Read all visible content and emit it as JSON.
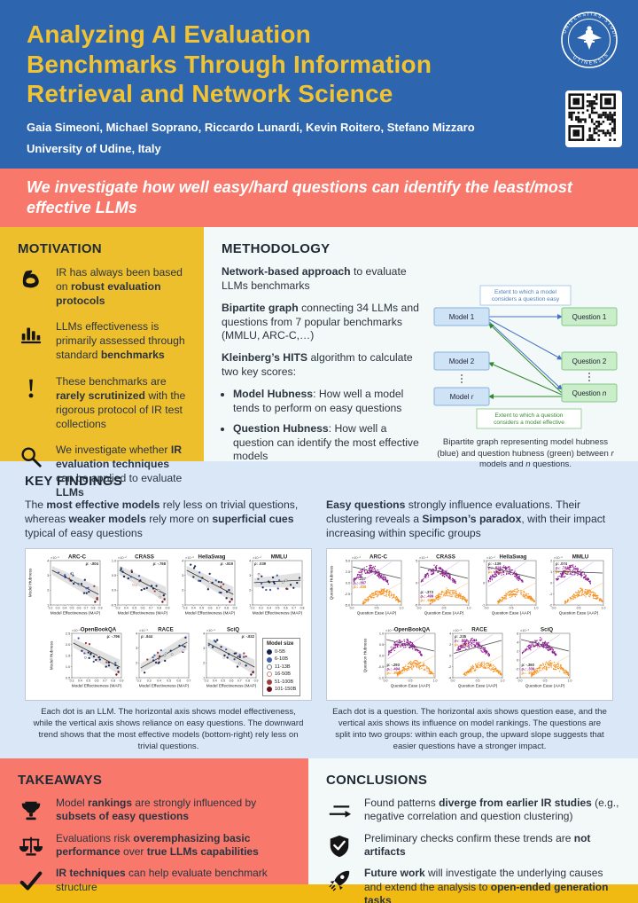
{
  "header": {
    "title_lines": [
      "Analyzing AI Evaluation",
      "Benchmarks Through Information",
      "Retrieval and Network Science"
    ],
    "authors": "Gaia Simeoni, Michael Soprano, Riccardo Lunardi, Kevin Roitero, Stefano Mizzaro",
    "affiliation": "University of Udine, Italy",
    "seal_text_top": "UNIVERSITAS STUDIORUM",
    "seal_text_bottom": "UTINENSIS"
  },
  "banner": {
    "text": "We investigate how well easy/hard questions can identify the least/most effective LLMs"
  },
  "motivation": {
    "heading": "MOTIVATION",
    "items": [
      {
        "icon": "muscle-icon",
        "segments": [
          {
            "t": "IR has always been based on "
          },
          {
            "t": "robust evaluation protocols",
            "b": true
          }
        ]
      },
      {
        "icon": "bar-chart-icon",
        "segments": [
          {
            "t": "LLMs effectiveness is primarily assessed through standard "
          },
          {
            "t": "benchmarks",
            "b": true
          }
        ]
      },
      {
        "icon": "exclamation-icon",
        "segments": [
          {
            "t": "These benchmarks are "
          },
          {
            "t": "rarely scrutinized",
            "b": true
          },
          {
            "t": " with the rigorous protocol of IR test collections"
          }
        ]
      },
      {
        "icon": "magnifier-icon",
        "segments": [
          {
            "t": "We investigate whether "
          },
          {
            "t": "IR evaluation techniques",
            "b": true
          },
          {
            "t": " can be applied to evaluate "
          },
          {
            "t": "LLMs",
            "b": true
          }
        ]
      }
    ]
  },
  "methodology": {
    "heading": "METHODOLOGY",
    "paragraphs": [
      [
        {
          "t": "Network-based approach",
          "b": true
        },
        {
          "t": " to evaluate LLMs benchmarks"
        }
      ],
      [
        {
          "t": "Bipartite graph",
          "b": true
        },
        {
          "t": " connecting 34 LLMs and questions from 7 popular benchmarks (MMLU, ARC-C,…)"
        }
      ],
      [
        {
          "t": "Kleinberg’s HITS",
          "b": true
        },
        {
          "t": " algorithm to calculate two key scores:"
        }
      ]
    ],
    "bullets": [
      [
        {
          "t": "Model Hubness",
          "b": true
        },
        {
          "t": ": How well a model tends to perform on easy questions"
        }
      ],
      [
        {
          "t": "Question Hubness",
          "b": true
        },
        {
          "t": ": How well a question can identify the most effective models"
        }
      ]
    ],
    "diagram": {
      "top_label": "Extent to which a model\nconsiders a question easy",
      "bottom_label": "Extent to which a question\nconsiders a model effective",
      "models": [
        [
          {
            "t": "Model 1"
          }
        ],
        [
          {
            "t": "Model 2"
          }
        ],
        [
          {
            "t": "Model "
          },
          {
            "t": "r",
            "i": true
          }
        ]
      ],
      "questions": [
        [
          {
            "t": "Question 1"
          }
        ],
        [
          {
            "t": "Question 2"
          }
        ],
        [
          {
            "t": "Question "
          },
          {
            "t": "n",
            "i": true
          }
        ]
      ],
      "model_fill": "#cfe3f7",
      "model_border": "#8ab0dd",
      "question_fill": "#c9eec9",
      "question_border": "#86c786",
      "blue_arrow": "#4472c4",
      "green_arrow": "#2e8b2e",
      "caption_segments": [
        {
          "t": "Bipartite graph representing model hubness (blue) and question hubness (green) between "
        },
        {
          "t": "r",
          "i": true
        },
        {
          "t": " models and "
        },
        {
          "t": "n",
          "i": true
        },
        {
          "t": " questions."
        }
      ]
    }
  },
  "key_findings": {
    "heading": "KEY FINDINGS",
    "left_intro": [
      {
        "t": "The "
      },
      {
        "t": "most effective models",
        "b": true
      },
      {
        "t": " rely less on trivial questions, whereas "
      },
      {
        "t": "weaker models",
        "b": true
      },
      {
        "t": " rely more on "
      },
      {
        "t": "superficial cues",
        "b": true
      },
      {
        "t": " typical of easy questions"
      }
    ],
    "right_intro": [
      {
        "t": "Easy questions",
        "b": true
      },
      {
        "t": " strongly influence evaluations. Their clustering reveals a "
      },
      {
        "t": "Simpson’s paradox",
        "b": true
      },
      {
        "t": ", with their impact increasing within specific groups"
      }
    ],
    "left_caption": "Each dot is an LLM. The horizontal axis shows model effectiveness, while the vertical axis shows reliance on easy questions. The downward trend shows that the most effective models (bottom-right) rely less on trivial questions.",
    "right_caption": "Each dot is a question. The horizontal axis shows question ease, and the vertical axis shows its influence on model rankings. The questions are split into two groups: within each group, the upward slope suggests that easier questions have a stronger impact."
  },
  "takeaways": {
    "heading": "TAKEAWAYS",
    "items": [
      {
        "icon": "trophy-icon",
        "segments": [
          {
            "t": "Model "
          },
          {
            "t": "rankings",
            "b": true
          },
          {
            "t": " are strongly influenced by "
          },
          {
            "t": "subsets of easy questions",
            "b": true
          }
        ]
      },
      {
        "icon": "scale-icon",
        "segments": [
          {
            "t": "Evaluations risk "
          },
          {
            "t": "overemphasizing basic performance",
            "b": true
          },
          {
            "t": " over "
          },
          {
            "t": "true LLMs capabilities",
            "b": true
          }
        ]
      },
      {
        "icon": "check-icon",
        "segments": [
          {
            "t": "IR techniques",
            "b": true
          },
          {
            "t": " can help evaluate benchmark structure"
          }
        ]
      }
    ]
  },
  "conclusions": {
    "heading": "CONCLUSIONS",
    "items": [
      {
        "icon": "swap-arrows-icon",
        "segments": [
          {
            "t": "Found patterns "
          },
          {
            "t": "diverge from earlier IR studies",
            "b": true
          },
          {
            "t": " (e.g., negative correlation and question clustering)"
          }
        ]
      },
      {
        "icon": "shield-check-icon",
        "segments": [
          {
            "t": "Preliminary checks confirm these trends are "
          },
          {
            "t": "not artifacts",
            "b": true
          }
        ]
      },
      {
        "icon": "rocket-icon",
        "segments": [
          {
            "t": "Future work",
            "b": true
          },
          {
            "t": " will investigate the underlying causes and extend the analysis to "
          },
          {
            "t": "open-ended generation tasks",
            "b": true
          }
        ]
      }
    ]
  },
  "colors": {
    "header_blue": "#2d65ae",
    "title_yellow": "#f1c232",
    "coral": "#f8796c",
    "motivation_yellow": "#eebf2c",
    "findings_blue": "#d9e7f6",
    "offwhite_panel": "#f3f8f8",
    "bottom_strip_yellow": "#f0ba12",
    "purple_cluster": "#8d1d8f",
    "orange_cluster": "#f5901e"
  },
  "chart_data": [
    {
      "type": "scatter",
      "kind": "model",
      "figure": "model-hubness-vs-model-effectiveness",
      "xlabel": "Model Effectiveness (MAP)",
      "ylabel": "Model Hubness",
      "subplots": [
        {
          "title": "ARC-C",
          "mult": "×10⁻²",
          "trend": "down",
          "rho_pos": "tr",
          "rho_lines": [
            {
              "text": "ρ: -.804",
              "color": "#333333"
            }
          ],
          "xticks": [
            "0.2",
            "0.3",
            "0.4",
            "0.5",
            "0.6",
            "0.7",
            "0.8",
            "0.9"
          ],
          "yticks": [
            "4",
            "3",
            "2",
            "1"
          ]
        },
        {
          "title": "CRASS",
          "mult": "×10⁻²",
          "trend": "down",
          "rho_pos": "tr",
          "rho_lines": [
            {
              "text": "ρ: -.768",
              "color": "#333333"
            }
          ],
          "xticks": [
            "0.3",
            "0.4",
            "0.5",
            "0.6",
            "0.7",
            "0.8",
            "0.9"
          ],
          "yticks": [
            "1.0",
            "0.5",
            "0.0",
            "-0.5"
          ]
        },
        {
          "title": "HellaSwag",
          "mult": "×10⁻²",
          "trend": "down",
          "rho_pos": "tr",
          "rho_lines": [
            {
              "text": "ρ: -.819",
              "color": "#333333"
            }
          ],
          "xticks": [
            "0.3",
            "0.4",
            "0.5",
            "0.6",
            "0.7",
            "0.8",
            "0.9"
          ],
          "yticks": [
            "4",
            "3",
            "2",
            "1"
          ]
        },
        {
          "title": "MMLU",
          "mult": "×10⁻²",
          "trend": "flat",
          "rho_pos": "tl",
          "rho_lines": [
            {
              "text": "ρ: .039",
              "color": "#333333"
            }
          ],
          "xticks": [
            "0.2",
            "0.3",
            "0.4",
            "0.5",
            "0.6",
            "0.7",
            "0.8"
          ],
          "yticks": [
            "4",
            "3",
            "2",
            "1"
          ]
        },
        {
          "title": "OpenBookQA",
          "mult": "×10⁻²",
          "trend": "down",
          "rho_pos": "tr",
          "rho_lines": [
            {
              "text": "ρ: -.796",
              "color": "#333333"
            }
          ],
          "xticks": [
            "0.3",
            "0.4",
            "0.5",
            "0.6",
            "0.7",
            "0.8",
            "0.9"
          ],
          "yticks": [
            "2.5",
            "2.0",
            "1.5",
            "1.0",
            "0.5"
          ]
        },
        {
          "title": "RACE",
          "mult": "×10⁻³",
          "trend": "up",
          "rho_pos": "tl",
          "rho_lines": [
            {
              "text": "ρ: .844",
              "color": "#333333"
            }
          ],
          "xticks": [
            "0.2",
            "0.3",
            "0.4",
            "0.5",
            "0.6",
            "0.7"
          ],
          "yticks": [
            "4",
            "3",
            "2",
            "1"
          ]
        },
        {
          "title": "SciQ",
          "mult": "×10⁻²",
          "trend": "down",
          "rho_pos": "tr",
          "rho_lines": [
            {
              "text": "ρ: -.832",
              "color": "#333333"
            }
          ],
          "xticks": [
            "0.3",
            "0.4",
            "0.5",
            "0.6",
            "0.7",
            "0.8",
            "0.9"
          ],
          "yticks": [
            "4",
            "3",
            "2",
            "1"
          ]
        }
      ],
      "legend": {
        "title": "Model size",
        "entries": [
          {
            "label": "0-5B",
            "color": "#10224c",
            "filled": true
          },
          {
            "label": "6-10B",
            "color": "#3f5fae",
            "filled": true
          },
          {
            "label": "11-13B",
            "color": "#777777",
            "filled": false
          },
          {
            "label": "16-50B",
            "color": "#c98a8a",
            "filled": false
          },
          {
            "label": "51-100B",
            "color": "#a33b3b",
            "filled": true
          },
          {
            "label": "101-150B",
            "color": "#6b1016",
            "filled": true
          }
        ]
      }
    },
    {
      "type": "scatter",
      "kind": "question",
      "figure": "question-hubness-vs-question-ease",
      "xlabel": "Question Ease (AAP)",
      "ylabel": "Question Hubness",
      "subplots": [
        {
          "title": "ARC-C",
          "mult": "×10⁻³",
          "trend": "down",
          "rho_pos": "ml",
          "rho_lines": [
            {
              "text": "ρ: -.237",
              "color": "#333333"
            },
            {
              "text": "ρ₁: .367",
              "color": "#8d1d8f"
            },
            {
              "text": "ρ₂: .838",
              "color": "#f5901e"
            }
          ],
          "xticks": [
            "0.0",
            "0.5",
            "1.0"
          ],
          "yticks": [
            "5.0",
            "2.5",
            "0.0",
            "-2.5",
            "-5.0"
          ]
        },
        {
          "title": "CRASS",
          "mult": "×10⁻⁴",
          "trend": "down",
          "rho_pos": "bl",
          "rho_lines": [
            {
              "text": "ρ: -.373",
              "color": "#333333"
            },
            {
              "text": "ρ₁: .499",
              "color": "#8d1d8f"
            },
            {
              "text": "ρ₂: .938",
              "color": "#f5901e"
            }
          ],
          "xticks": [
            "0.0",
            "0.5",
            "1.0"
          ],
          "yticks": [
            "5",
            "0",
            "-5"
          ]
        },
        {
          "title": "HellaSwag",
          "mult": "×10⁻²",
          "trend": "down",
          "rho_pos": "tl",
          "rho_lines": [
            {
              "text": "ρ: -.139",
              "color": "#333333"
            },
            {
              "text": "ρ₁: .828",
              "color": "#8d1d8f"
            },
            {
              "text": "ρ₂: .948",
              "color": "#f5901e"
            }
          ],
          "xticks": [
            "0.0",
            "0.5",
            "1.0"
          ],
          "yticks": [
            "1",
            "0",
            "-1"
          ]
        },
        {
          "title": "MMLU",
          "mult": "×10⁻²",
          "trend": "flat",
          "rho_pos": "tl",
          "rho_lines": [
            {
              "text": "ρ: .074",
              "color": "#333333"
            },
            {
              "text": "ρ₁: .742",
              "color": "#8d1d8f"
            },
            {
              "text": "ρ₂: .903",
              "color": "#f5901e"
            }
          ],
          "xticks": [
            "0.0",
            "0.5",
            "1.0"
          ],
          "yticks": [
            "2",
            "1",
            "0",
            "-1",
            "-2"
          ]
        },
        {
          "title": "OpenBookQA",
          "mult": "×10⁻²",
          "trend": "down",
          "rho_pos": "bl",
          "rho_lines": [
            {
              "text": "ρ: -.293",
              "color": "#333333"
            },
            {
              "text": "ρ₁: .494",
              "color": "#8d1d8f"
            },
            {
              "text": "ρ₂: .892",
              "color": "#f5901e"
            }
          ],
          "xticks": [
            "0.0",
            "0.5",
            "1.0"
          ],
          "yticks": [
            "1.0",
            "0.5",
            "0.0",
            "-0.5",
            "-1.0"
          ]
        },
        {
          "title": "RACE",
          "mult": "×10⁻³",
          "trend": "up",
          "rho_pos": "tl",
          "rho_lines": [
            {
              "text": "ρ: .235",
              "color": "#333333"
            },
            {
              "text": "ρ₁: .860",
              "color": "#8d1d8f"
            },
            {
              "text": "ρ₂: .940",
              "color": "#f5901e"
            }
          ],
          "xticks": [
            "0.0",
            "0.5",
            "1.0"
          ],
          "yticks": [
            "4",
            "2",
            "0",
            "-2",
            "-4"
          ]
        },
        {
          "title": "SciQ",
          "mult": "×10⁻³",
          "trend": "down",
          "rho_pos": "bl",
          "rho_lines": [
            {
              "text": "ρ: -.360",
              "color": "#333333"
            },
            {
              "text": "ρ₁: .339",
              "color": "#8d1d8f"
            },
            {
              "text": "ρ₂: .897",
              "color": "#f5901e"
            }
          ],
          "xticks": [
            "0.0",
            "0.5",
            "1.0"
          ],
          "yticks": [
            "6",
            "4",
            "2",
            "0",
            "-2",
            "-4"
          ]
        }
      ]
    }
  ]
}
